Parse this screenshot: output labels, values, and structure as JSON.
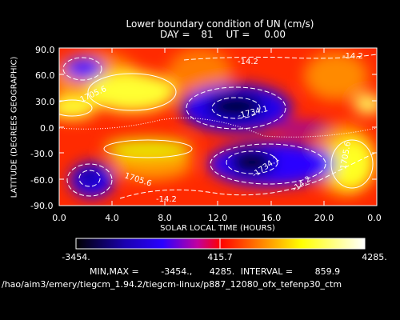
{
  "title": "Lower boundary condition of UN (cm/s)",
  "subtitle": {
    "day_label": "DAY =",
    "day": "81",
    "ut_label": "UT =",
    "ut": "0.00"
  },
  "colorbar": {
    "min_label": "-3454.",
    "mid_label": "415.7",
    "max_label": "4285."
  },
  "stats": {
    "minmax_label": "MIN,MAX =",
    "min": "-3454.,",
    "max": "4285.",
    "interval_label": "INTERVAL =",
    "interval": "859.9"
  },
  "file_path": "/hao/aim3/emery/tiegcm_1.94.2/tiegcm-linux/p887_12080_ofx_tefenp30_ctm",
  "chart_data": {
    "type": "heatmap",
    "title": "Lower boundary condition of UN (cm/s)",
    "xlabel": "SOLAR LOCAL TIME (HOURS)",
    "ylabel": "LATITUDE (DEGREES GEOGRAPHIC)",
    "xlim": [
      0,
      24
    ],
    "ylim": [
      -90,
      90
    ],
    "x_ticks": [
      "0.0",
      "4.0",
      "8.0",
      "12.0",
      "16.0",
      "20.0",
      "0.0"
    ],
    "y_ticks": [
      "90.0",
      "60.0",
      "30.0",
      "0.0",
      "-30.0",
      "-60.0",
      "-90.0"
    ],
    "value_range": [
      -3454,
      4285
    ],
    "contour_interval": 859.9,
    "contour_labels": [
      {
        "text": "-14.2",
        "x": 13.5,
        "y": 71
      },
      {
        "text": "-14.2",
        "x": 21.0,
        "y": 75
      },
      {
        "text": "-1734.1",
        "x": 13.8,
        "y": 17
      },
      {
        "text": "-1734.1",
        "x": 15.5,
        "y": -53
      },
      {
        "text": "-14.2",
        "x": 18.6,
        "y": -61
      },
      {
        "text": "-14.2",
        "x": 8.3,
        "y": -75
      },
      {
        "text": "1705.6",
        "x": 5.8,
        "y": -47
      },
      {
        "text": "1705.6",
        "x": 21.8,
        "y": -37
      },
      {
        "text": "1705.6",
        "x": 2.3,
        "y": 37
      }
    ]
  }
}
